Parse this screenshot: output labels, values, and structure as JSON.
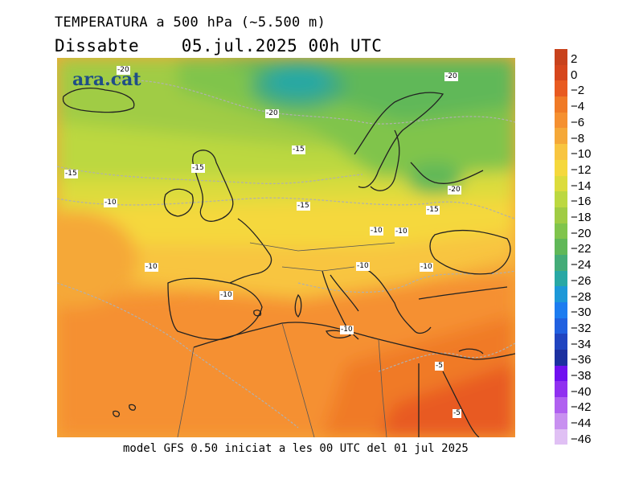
{
  "header": {
    "title": "TEMPERATURA a 500 hPa (~5.500 m)",
    "day": "Dissabte",
    "datetime": "05.jul.2025 00h UTC"
  },
  "footer": "model GFS 0.50 iniciat a les 00 UTC del 01 jul 2025",
  "logo": "ara.cat",
  "legend": {
    "levels": [
      "2",
      "0",
      "−2",
      "−4",
      "−6",
      "−8",
      "−10",
      "−12",
      "−14",
      "−16",
      "−18",
      "−20",
      "−22",
      "−24",
      "−26",
      "−28",
      "−30",
      "−32",
      "−34",
      "−36",
      "−38",
      "−40",
      "−42",
      "−44",
      "−46"
    ],
    "colors": [
      "#c8421c",
      "#d6461c",
      "#e85a20",
      "#f07a26",
      "#f59030",
      "#f5a838",
      "#f8c540",
      "#f5d83c",
      "#dcdc3c",
      "#bcd840",
      "#a0cc44",
      "#80c44c",
      "#60b858",
      "#44ac78",
      "#28a8a4",
      "#1c98d8",
      "#1c7cf0",
      "#2060e0",
      "#2044c0",
      "#1c30a0",
      "#7010f0",
      "#9030f0",
      "#b060f0",
      "#c890f0",
      "#e0c0f4"
    ]
  },
  "contour_labels": [
    "-20",
    "-20",
    "-20",
    "-15",
    "-15",
    "-15",
    "-10",
    "-15",
    "-20",
    "-15",
    "-10",
    "-10",
    "-10",
    "-10",
    "-10",
    "-10",
    "-10",
    "-5",
    "-5"
  ]
}
